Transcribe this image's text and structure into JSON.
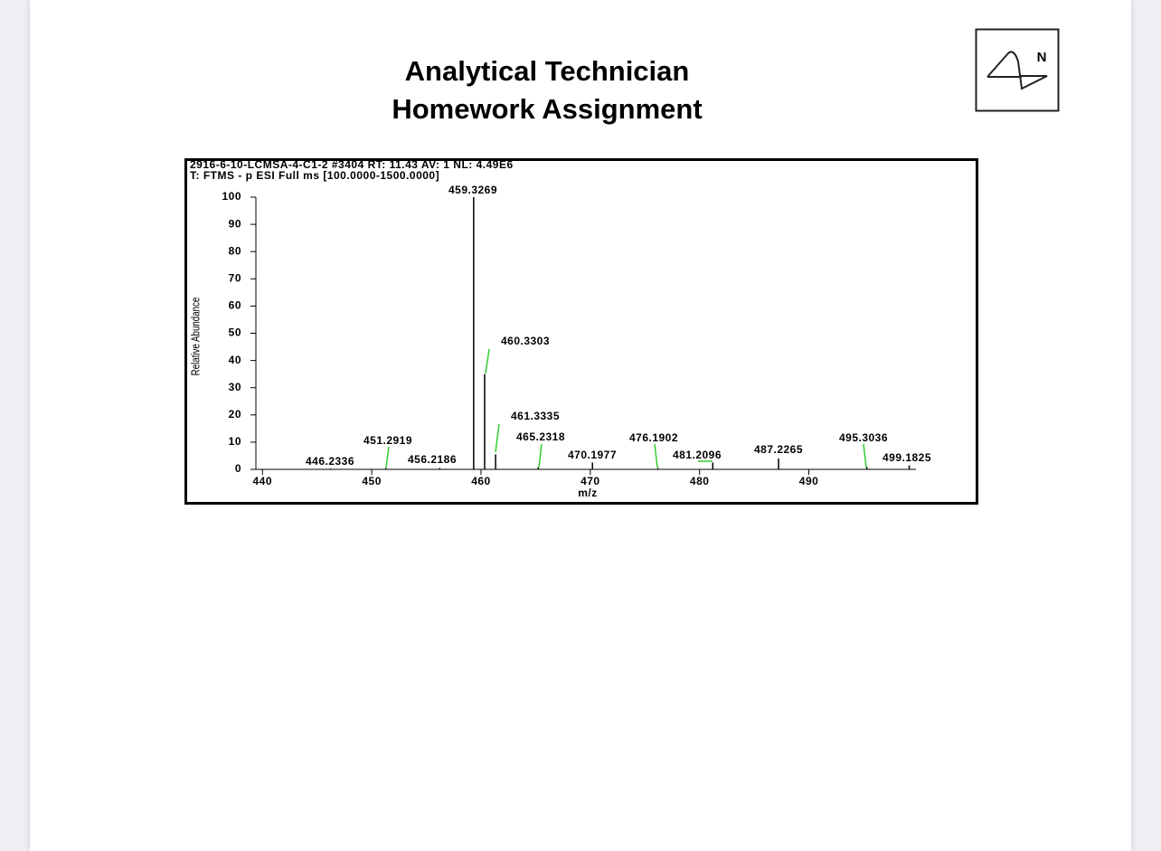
{
  "header": {
    "title_lines": [
      "Analytical Technician",
      "Homework Assignment"
    ],
    "logo_text": "N"
  },
  "chart_data": {
    "type": "bar",
    "header_lines": [
      "2916-6-10-LCMSA-4-C1-2 #3404 RT: 11.43 AV: 1 NL: 4.49E6",
      "T: FTMS - p ESI Full ms [100.0000-1500.0000]"
    ],
    "x": [
      446.2336,
      451.2919,
      456.2186,
      459.3269,
      460.3303,
      461.3335,
      465.2318,
      470.1977,
      476.1902,
      481.2096,
      487.2265,
      495.3036,
      499.1825
    ],
    "values": [
      0.3,
      0.5,
      0.5,
      100,
      35,
      5.5,
      0.8,
      2.5,
      0.5,
      2.5,
      4,
      1,
      1.5
    ],
    "xlim": [
      439.4,
      499.8
    ],
    "ylim": [
      0,
      100
    ],
    "xticks": [
      440,
      450,
      460,
      470,
      480,
      490
    ],
    "yticks": [
      0,
      10,
      20,
      30,
      40,
      50,
      60,
      70,
      80,
      90,
      100
    ],
    "xlabel": "m/z",
    "ylabel": "Relative Abundance",
    "color": "#000000",
    "leader_color": "#33cc33"
  }
}
